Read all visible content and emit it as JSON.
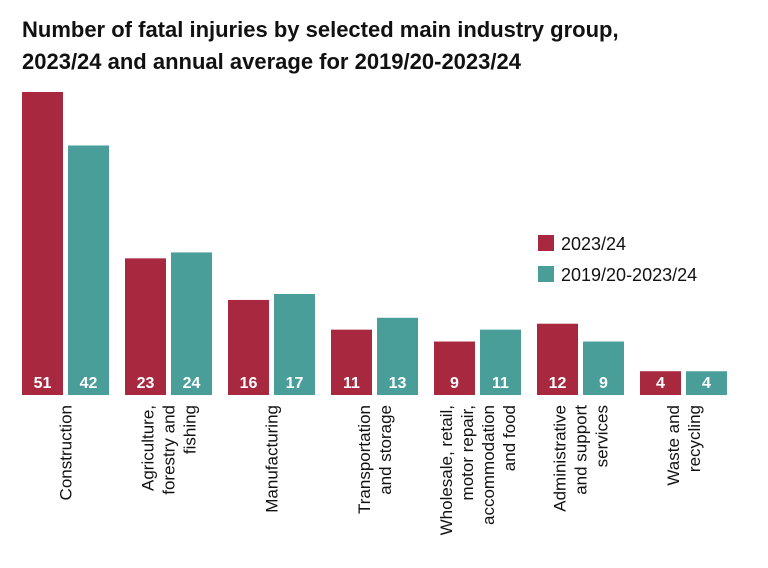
{
  "chart_data": {
    "type": "bar",
    "title": [
      "Number of fatal injuries by selected main industry group,",
      "2023/24 and annual average for 2019/20-2023/24"
    ],
    "categories": [
      [
        "Construction"
      ],
      [
        "Agriculture,",
        "forestry and",
        "fishing"
      ],
      [
        "Manufacturing"
      ],
      [
        "Transportation",
        "and storage"
      ],
      [
        "Wholesale, retail,",
        "motor repair,",
        "accommodation",
        "and food"
      ],
      [
        "Administrative",
        "and support",
        "services"
      ],
      [
        "Waste and",
        "recycling"
      ]
    ],
    "series": [
      {
        "name": "2023/24",
        "color": "#a8283f",
        "values": [
          51,
          23,
          16,
          11,
          9,
          12,
          4
        ]
      },
      {
        "name": "2019/20-2023/24",
        "color": "#4a9e9a",
        "values": [
          42,
          24,
          17,
          13,
          11,
          9,
          4
        ]
      }
    ]
  }
}
